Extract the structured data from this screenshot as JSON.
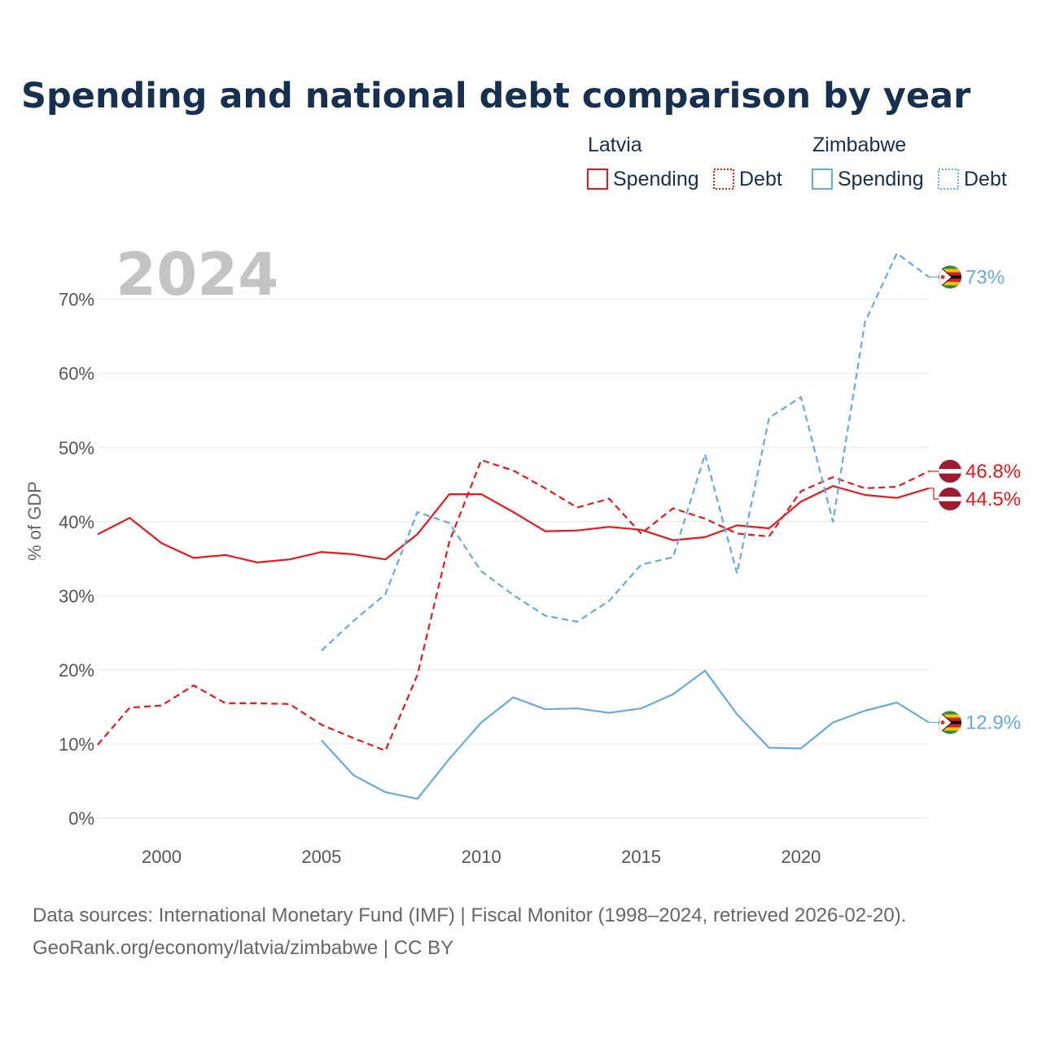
{
  "chart_data": {
    "type": "line",
    "title": "Spending and national debt comparison by year",
    "ylabel": "% of GDP",
    "xlabel": "",
    "year_label": "2024",
    "xlim": [
      1998,
      2024
    ],
    "ylim": [
      0,
      77
    ],
    "x_ticks": [
      2000,
      2005,
      2010,
      2015,
      2020
    ],
    "y_ticks": [
      0,
      10,
      20,
      30,
      40,
      50,
      60,
      70
    ],
    "y_tick_labels": [
      "0%",
      "10%",
      "20%",
      "30%",
      "40%",
      "50%",
      "60%",
      "70%"
    ],
    "legend": {
      "groups": [
        {
          "country": "Latvia",
          "color": "#e8191c",
          "items": [
            "Spending",
            "Debt"
          ]
        },
        {
          "country": "Zimbabwe",
          "color": "#6aa8e2",
          "items": [
            "Spending",
            "Debt"
          ]
        }
      ]
    },
    "series": [
      {
        "name": "Latvia Spending",
        "country": "Latvia",
        "metric": "Spending",
        "color": "#e8191c",
        "dashed": false,
        "x": [
          1998,
          1999,
          2000,
          2001,
          2002,
          2003,
          2004,
          2005,
          2006,
          2007,
          2008,
          2009,
          2010,
          2011,
          2012,
          2013,
          2014,
          2015,
          2016,
          2017,
          2018,
          2019,
          2020,
          2021,
          2022,
          2023,
          2024
        ],
        "values": [
          38.3,
          40.5,
          37.1,
          35.1,
          35.5,
          34.5,
          34.9,
          35.9,
          35.6,
          34.9,
          38.3,
          43.7,
          43.7,
          41.3,
          38.7,
          38.8,
          39.3,
          38.9,
          37.5,
          37.9,
          39.5,
          39.1,
          42.7,
          44.8,
          43.6,
          43.2,
          44.5
        ],
        "end_label": "44.5%"
      },
      {
        "name": "Latvia Debt",
        "country": "Latvia",
        "metric": "Debt",
        "color": "#e8191c",
        "dashed": true,
        "x": [
          1998,
          1999,
          2000,
          2001,
          2002,
          2003,
          2004,
          2005,
          2006,
          2007,
          2008,
          2009,
          2010,
          2011,
          2012,
          2013,
          2014,
          2015,
          2016,
          2017,
          2018,
          2019,
          2020,
          2021,
          2022,
          2023,
          2024
        ],
        "values": [
          9.9,
          14.9,
          15.2,
          17.9,
          15.5,
          15.5,
          15.4,
          12.6,
          10.8,
          9.1,
          19.3,
          37.3,
          48.3,
          46.9,
          44.5,
          41.9,
          43.1,
          38.4,
          41.8,
          40.4,
          38.4,
          38.0,
          44.1,
          46.0,
          44.5,
          44.7,
          46.8
        ],
        "end_label": "46.8%"
      },
      {
        "name": "Zimbabwe Spending",
        "country": "Zimbabwe",
        "metric": "Spending",
        "color": "#6aa8e2",
        "dashed": false,
        "x": [
          2005,
          2006,
          2007,
          2008,
          2009,
          2010,
          2011,
          2012,
          2013,
          2014,
          2015,
          2016,
          2017,
          2018,
          2019,
          2020,
          2021,
          2022,
          2023,
          2024
        ],
        "values": [
          10.5,
          5.8,
          3.5,
          2.6,
          8.0,
          12.9,
          16.3,
          14.7,
          14.8,
          14.2,
          14.8,
          16.7,
          19.9,
          14.0,
          9.5,
          9.4,
          12.9,
          14.5,
          15.6,
          12.9
        ],
        "end_label": "12.9%"
      },
      {
        "name": "Zimbabwe Debt",
        "country": "Zimbabwe",
        "metric": "Debt",
        "color": "#6aa8e2",
        "dashed": true,
        "x": [
          2005,
          2006,
          2007,
          2008,
          2009,
          2010,
          2011,
          2012,
          2013,
          2014,
          2015,
          2016,
          2017,
          2018,
          2019,
          2020,
          2021,
          2022,
          2023,
          2024
        ],
        "values": [
          22.6,
          26.6,
          30.2,
          41.3,
          39.8,
          33.3,
          30.1,
          27.3,
          26.5,
          29.3,
          34.2,
          35.2,
          49.1,
          33.0,
          54.0,
          56.8,
          40.0,
          66.9,
          76.2,
          73.0
        ],
        "end_label": "73%"
      }
    ],
    "source_line1": "Data sources: International Monetary Fund (IMF) | Fiscal Monitor (1998–2024, retrieved 2026-02-20).",
    "source_line2": "GeoRank.org/economy/latvia/zimbabwe | CC BY"
  }
}
